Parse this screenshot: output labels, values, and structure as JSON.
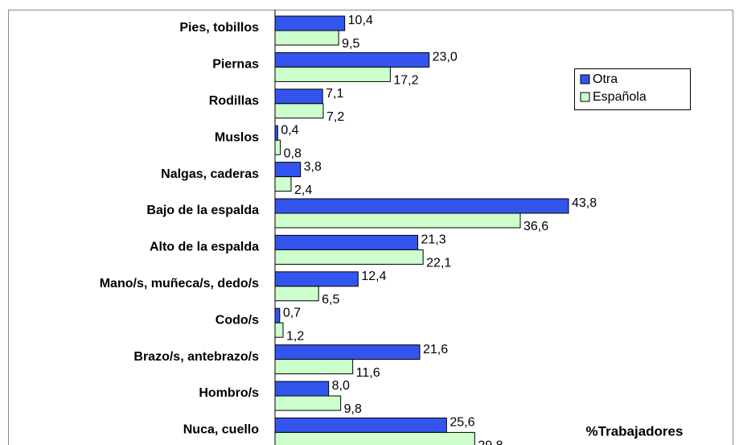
{
  "chart_data": {
    "type": "bar",
    "orientation": "horizontal",
    "x_label": "%Trabajadores",
    "categories": [
      "Pies, tobillos",
      "Piernas",
      "Rodillas",
      "Muslos",
      "Nalgas, caderas",
      "Bajo de la espalda",
      "Alto de la espalda",
      "Mano/s, muñeca/s, dedo/s",
      "Codo/s",
      "Brazo/s, antebrazo/s",
      "Hombro/s",
      "Nuca, cuello"
    ],
    "series": [
      {
        "name": "Otra",
        "color": "#3355ee",
        "values": [
          10.4,
          23.0,
          7.1,
          0.4,
          3.8,
          43.8,
          21.3,
          12.4,
          0.7,
          21.6,
          8.0,
          25.6
        ],
        "value_labels": [
          "10,4",
          "23,0",
          "7,1",
          "0,4",
          "3,8",
          "43,8",
          "21,3",
          "12,4",
          "0,7",
          "21,6",
          "8,0",
          "25,6"
        ]
      },
      {
        "name": "Española",
        "color": "#ccffcc",
        "values": [
          9.5,
          17.2,
          7.2,
          0.8,
          2.4,
          36.6,
          22.1,
          6.5,
          1.2,
          11.6,
          9.8,
          29.8
        ],
        "value_labels": [
          "9,5",
          "17,2",
          "7,2",
          "0,8",
          "2,4",
          "36,6",
          "22,1",
          "6,5",
          "1,2",
          "11,6",
          "9,8",
          "29,8"
        ]
      }
    ],
    "xlim": [
      0,
      60
    ],
    "legend": "upper right"
  }
}
